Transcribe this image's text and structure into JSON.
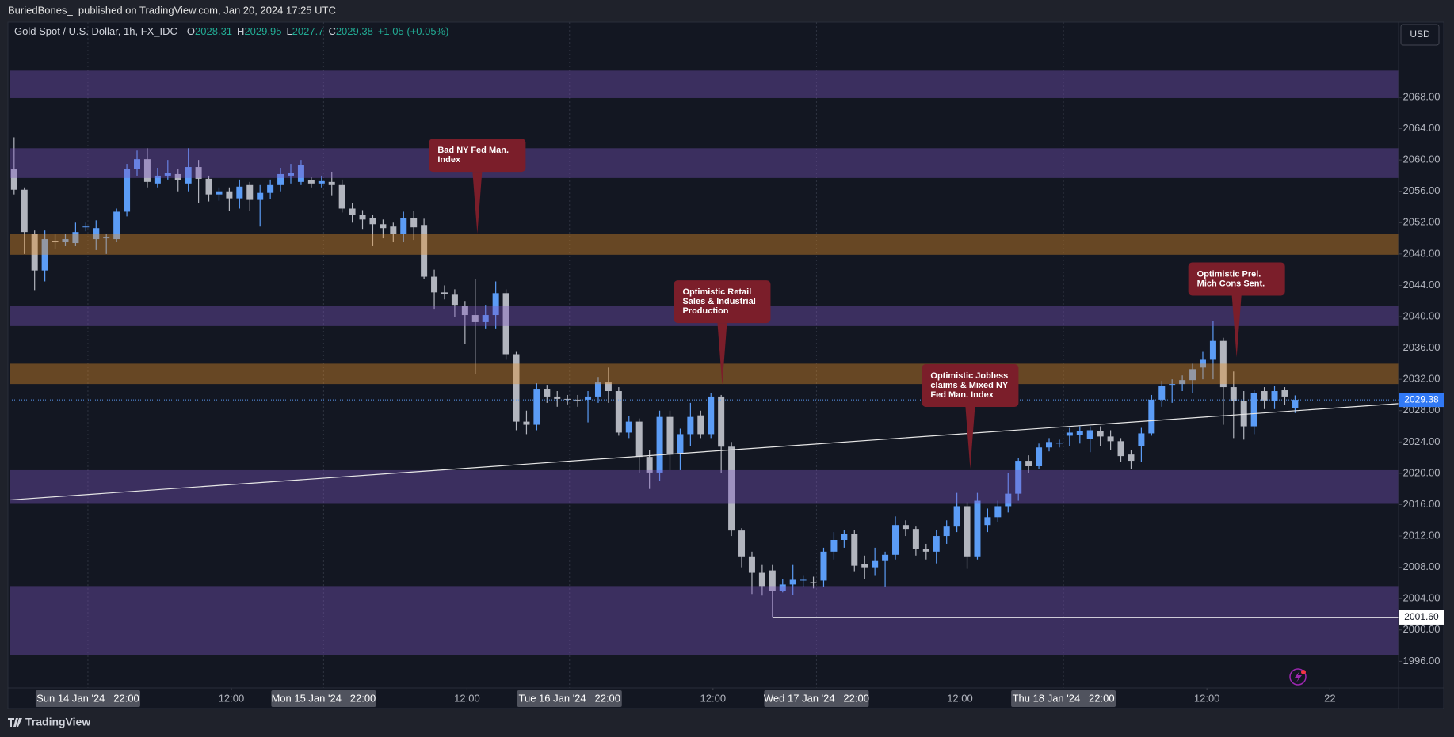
{
  "header": {
    "publisher": "BuriedBones_  published on TradingView.com, Jan 20, 2024 17:25 UTC"
  },
  "currency": "USD",
  "brand": "TradingView",
  "chart_data": {
    "type": "candlestick",
    "title": "Gold Spot / U.S. Dollar, 1h, FX_IDC",
    "ohlc_prefixes": [
      "O",
      "H",
      "L",
      "C"
    ],
    "change": "+1.05 (+0.05%)",
    "up_color": "#5b9cf6",
    "down_color": "#b2b5be",
    "legend_color": "#22ab94",
    "open": [
      2058.8,
      2056.2,
      2050.6,
      2045.9,
      2049.7,
      2049.5,
      2049.4,
      2051.4,
      2049.9,
      2050,
      2049.9,
      2053.4,
      2058.9,
      2060.1,
      2057.0,
      2058,
      2058.2,
      2057,
      2059.1,
      2057.6,
      2055.6,
      2056,
      2055.1,
      2056.8,
      2054.9,
      2055.8,
      2056.8,
      2058,
      2057.2,
      2057.4,
      2057,
      2057.2,
      2056.8,
      2053.8,
      2053,
      2052.6,
      2051.8,
      2051.5,
      2050.6,
      2052.6,
      2051.7,
      2045.1,
      2043.1,
      2042.8,
      2041.4,
      2040.2,
      2039.3,
      2040.2,
      2043,
      2035.2,
      2026.6,
      2026.2,
      2030.7,
      2029.8,
      2029.5,
      2029.4,
      2029.4,
      2029.8,
      2031.6,
      2030.5,
      2025.2,
      2026.6,
      2022.1,
      2020.1,
      2027.2,
      2022.6,
      2025,
      2027.4,
      2025,
      2029.8,
      2023.4,
      2012.7,
      2009.4,
      2007.3,
      2007.6,
      2005,
      2005.8,
      2006.3,
      2006.1,
      2006.3,
      2010,
      2011.5,
      2012.3,
      2008.4,
      2008,
      2008.8,
      2009.6,
      2013.4,
      2012.9,
      2010.3,
      2010,
      2012,
      2013.2,
      2015.8,
      2009.4,
      2013.4,
      2014.4,
      2015.8,
      2017.4,
      2021.6,
      2020.9,
      2023.3,
      2023.9,
      2024.8,
      2024.9,
      2024.4,
      2025.4,
      2024.7,
      2024.1,
      2022.4,
      2023.5,
      2025.1,
      2029.4,
      2031.3,
      2031.4,
      2031.9,
      2033.5,
      2034.5,
      2036.9,
      2031.0,
      2029.2,
      2026,
      2030.5,
      2029.2,
      2030.6,
      2028.31
    ],
    "high": [
      2062.9,
      2056.5,
      2051,
      2051,
      2050.5,
      2050.6,
      2052,
      2052,
      2052.3,
      2050.6,
      2053.8,
      2059.5,
      2061.2,
      2061.5,
      2059,
      2060,
      2058.8,
      2061.5,
      2060,
      2058,
      2056.5,
      2056.5,
      2057.5,
      2057.2,
      2056.8,
      2057.5,
      2059,
      2059.5,
      2060,
      2057.8,
      2058,
      2058.5,
      2057.5,
      2054.5,
      2053.6,
      2053,
      2052.4,
      2052,
      2053.4,
      2053.5,
      2052.5,
      2046,
      2044,
      2043.5,
      2042,
      2044.8,
      2041.5,
      2044.5,
      2043.5,
      2035.5,
      2028,
      2031.5,
      2031.3,
      2030.5,
      2030,
      2030,
      2030.5,
      2032.3,
      2033.5,
      2031,
      2027.3,
      2027,
      2023,
      2028,
      2028,
      2025.7,
      2029,
      2028,
      2030.3,
      2030,
      2024,
      2013,
      2010,
      2008.3,
      2008.3,
      2006.5,
      2008.3,
      2007,
      2006.8,
      2010.5,
      2012.5,
      2012.8,
      2012.8,
      2009.5,
      2010.5,
      2010,
      2014.5,
      2014,
      2013.2,
      2011,
      2012.8,
      2014,
      2017.5,
      2016.3,
      2017.5,
      2015.5,
      2016.5,
      2020,
      2022,
      2022.3,
      2023.8,
      2024.5,
      2024.3,
      2025.8,
      2026,
      2026,
      2026,
      2025.5,
      2024.5,
      2023,
      2025.8,
      2030,
      2031.8,
      2032,
      2032.5,
      2034,
      2035.5,
      2039.4,
      2037.3,
      2033,
      2030.5,
      2030.6,
      2031,
      2031.2,
      2031,
      2029.95
    ],
    "low": [
      2055.6,
      2048,
      2043.4,
      2044.5,
      2048.7,
      2049,
      2049,
      2050.9,
      2048.5,
      2048,
      2049.5,
      2052.8,
      2058,
      2056.5,
      2056.5,
      2057.5,
      2056,
      2056,
      2054.5,
      2054.7,
      2054.8,
      2053.5,
      2053.8,
      2053.5,
      2051.5,
      2055,
      2056,
      2057,
      2056.8,
      2056.5,
      2056.5,
      2055.5,
      2053.3,
      2052,
      2051.2,
      2049,
      2050,
      2049.5,
      2049.5,
      2049.8,
      2044.8,
      2041,
      2042.2,
      2040,
      2036.5,
      2032.7,
      2038.5,
      2038.5,
      2034.5,
      2025.5,
      2025,
      2025.5,
      2029,
      2028.5,
      2028.8,
      2028.5,
      2026.5,
      2029,
      2029,
      2024.8,
      2024.5,
      2020,
      2018,
      2019,
      2020.4,
      2020.4,
      2023.5,
      2024.5,
      2024.5,
      2020,
      2012,
      2008,
      2004.6,
      2004.4,
      2001.6,
      2004.8,
      2004.5,
      2005.5,
      2005.3,
      2005.5,
      2009,
      2010.5,
      2007.5,
      2006.5,
      2007,
      2005.5,
      2009,
      2012,
      2009.5,
      2009,
      2008.5,
      2011,
      2012.5,
      2007.8,
      2009,
      2012.5,
      2013.8,
      2015,
      2016.5,
      2020,
      2020.5,
      2022.8,
      2023.3,
      2023.5,
      2023.8,
      2022.7,
      2023.5,
      2023,
      2021.5,
      2020.5,
      2021.5,
      2024.8,
      2028.5,
      2029,
      2030.5,
      2030.2,
      2032,
      2032,
      2026.2,
      2024.5,
      2024.3,
      2025,
      2028.2,
      2028.2,
      2028.7,
      2027.7
    ],
    "close": [
      2056.2,
      2050.8,
      2045.9,
      2049.9,
      2049.5,
      2049.9,
      2050.8,
      2051.5,
      2051.3,
      2050.1,
      2053.4,
      2058.9,
      2060.1,
      2057.2,
      2058,
      2058.3,
      2057.4,
      2059.1,
      2057.6,
      2055.6,
      2056,
      2055.1,
      2056.6,
      2054.9,
      2055.8,
      2056.8,
      2058.2,
      2058.3,
      2059.4,
      2057,
      2057.3,
      2056.8,
      2053.8,
      2053,
      2052.4,
      2051.8,
      2051.3,
      2050.6,
      2052.6,
      2051.4,
      2045.1,
      2043.1,
      2042.9,
      2041.5,
      2040.2,
      2039.3,
      2040.2,
      2043,
      2035.2,
      2026.6,
      2026.2,
      2030.7,
      2029.8,
      2029.5,
      2029.4,
      2029.3,
      2029.8,
      2031.6,
      2030.5,
      2025.2,
      2026.6,
      2022.1,
      2020.1,
      2027.2,
      2022.4,
      2025,
      2027.2,
      2025,
      2029.8,
      2023.4,
      2012.7,
      2009.4,
      2007.3,
      2005.6,
      2005,
      2005.8,
      2006.4,
      2006.4,
      2006.0,
      2010,
      2011.5,
      2012.3,
      2008.2,
      2008,
      2008.8,
      2009.6,
      2013.4,
      2012.9,
      2010.3,
      2010,
      2012,
      2013.2,
      2015.8,
      2009.4,
      2016.5,
      2014.4,
      2015.8,
      2017.4,
      2021.6,
      2020.9,
      2023.3,
      2024,
      2023.9,
      2025.2,
      2025.4,
      2025.5,
      2024.7,
      2024.1,
      2022.2,
      2021.6,
      2025.1,
      2029.4,
      2031.2,
      2031.4,
      2031.9,
      2033.3,
      2034.5,
      2036.9,
      2031.0,
      2029.2,
      2026,
      2030.2,
      2029.3,
      2030.5,
      2029.8,
      2029.38
    ],
    "xlim": [
      -0.45,
      135.1
    ],
    "ylim": [
      1992.6,
      2077.6
    ],
    "yticks": [
      {
        "value": 1996,
        "label": "1996.00"
      },
      {
        "value": 2000,
        "label": "2000.00"
      },
      {
        "value": 2004,
        "label": "2004.00"
      },
      {
        "value": 2008,
        "label": "2008.00"
      },
      {
        "value": 2012,
        "label": "2012.00"
      },
      {
        "value": 2016,
        "label": "2016.00"
      },
      {
        "value": 2020,
        "label": "2020.00"
      },
      {
        "value": 2024,
        "label": "2024.00"
      },
      {
        "value": 2028,
        "label": "2028.00"
      },
      {
        "value": 2032,
        "label": "2032.00"
      },
      {
        "value": 2036,
        "label": "2036.00"
      },
      {
        "value": 2040,
        "label": "2040.00"
      },
      {
        "value": 2044,
        "label": "2044.00"
      },
      {
        "value": 2048,
        "label": "2048.00"
      },
      {
        "value": 2052,
        "label": "2052.00"
      },
      {
        "value": 2056,
        "label": "2056.00"
      },
      {
        "value": 2060,
        "label": "2060.00"
      },
      {
        "value": 2064,
        "label": "2064.00"
      },
      {
        "value": 2068,
        "label": "2068.00"
      }
    ],
    "xticks": [
      {
        "value": 21.2,
        "label": "12:00"
      },
      {
        "value": 44.2,
        "label": "12:00"
      },
      {
        "value": 68.2,
        "label": "12:00"
      },
      {
        "value": 92.3,
        "label": "12:00"
      },
      {
        "value": 116.4,
        "label": "12:00"
      },
      {
        "value": 128.4,
        "label": "22"
      }
    ],
    "day_ticks": [
      {
        "value": 7.2,
        "label": "Sun 14 Jan '24   22:00"
      },
      {
        "value": 30.2,
        "label": "Mon 15 Jan '24   22:00"
      },
      {
        "value": 54.2,
        "label": "Tue 16 Jan '24   22:00"
      },
      {
        "value": 78.3,
        "label": "Wed 17 Jan '24   22:00"
      },
      {
        "value": 102.4,
        "label": "Thu 18 Jan '24   22:00"
      }
    ],
    "zones": [
      {
        "low": 2067.9,
        "high": 2071.4,
        "color": "rgba(126,87,194,0.38)"
      },
      {
        "low": 2057.7,
        "high": 2061.5,
        "color": "rgba(126,87,194,0.38)"
      },
      {
        "low": 2047.9,
        "high": 2050.6,
        "color": "rgba(230,145,40,0.40)"
      },
      {
        "low": 2038.8,
        "high": 2041.4,
        "color": "rgba(126,87,194,0.38)"
      },
      {
        "low": 2031.4,
        "high": 2034.0,
        "color": "rgba(230,145,40,0.40)"
      },
      {
        "low": 2016.1,
        "high": 2020.4,
        "color": "rgba(126,87,194,0.38)"
      },
      {
        "low": 1996.8,
        "high": 2005.6,
        "color": "rgba(126,87,194,0.38)"
      }
    ],
    "trend_line": {
      "x": [
        -0.45,
        135.1
      ],
      "y": [
        2016.6,
        2028.9
      ]
    },
    "support_line": {
      "x_start": 74,
      "value": 2001.6,
      "value_label": "2001.60"
    },
    "annotations": [
      {
        "x": 45.2,
        "y": 2050.6,
        "lines": [
          "Bad NY Fed Man.",
          "Index"
        ]
      },
      {
        "x": 69.1,
        "y": 2031.3,
        "lines": [
          "Optimistic Retail",
          "Sales & Industrial",
          "Production"
        ]
      },
      {
        "x": 93.3,
        "y": 2020.6,
        "lines": [
          "Optimistic Jobless",
          "claims & Mixed NY",
          "Fed Man. Index"
        ]
      },
      {
        "x": 119.3,
        "y": 2034.8,
        "lines": [
          "Optimistic Prel.",
          "Mich Cons Sent."
        ]
      }
    ]
  }
}
